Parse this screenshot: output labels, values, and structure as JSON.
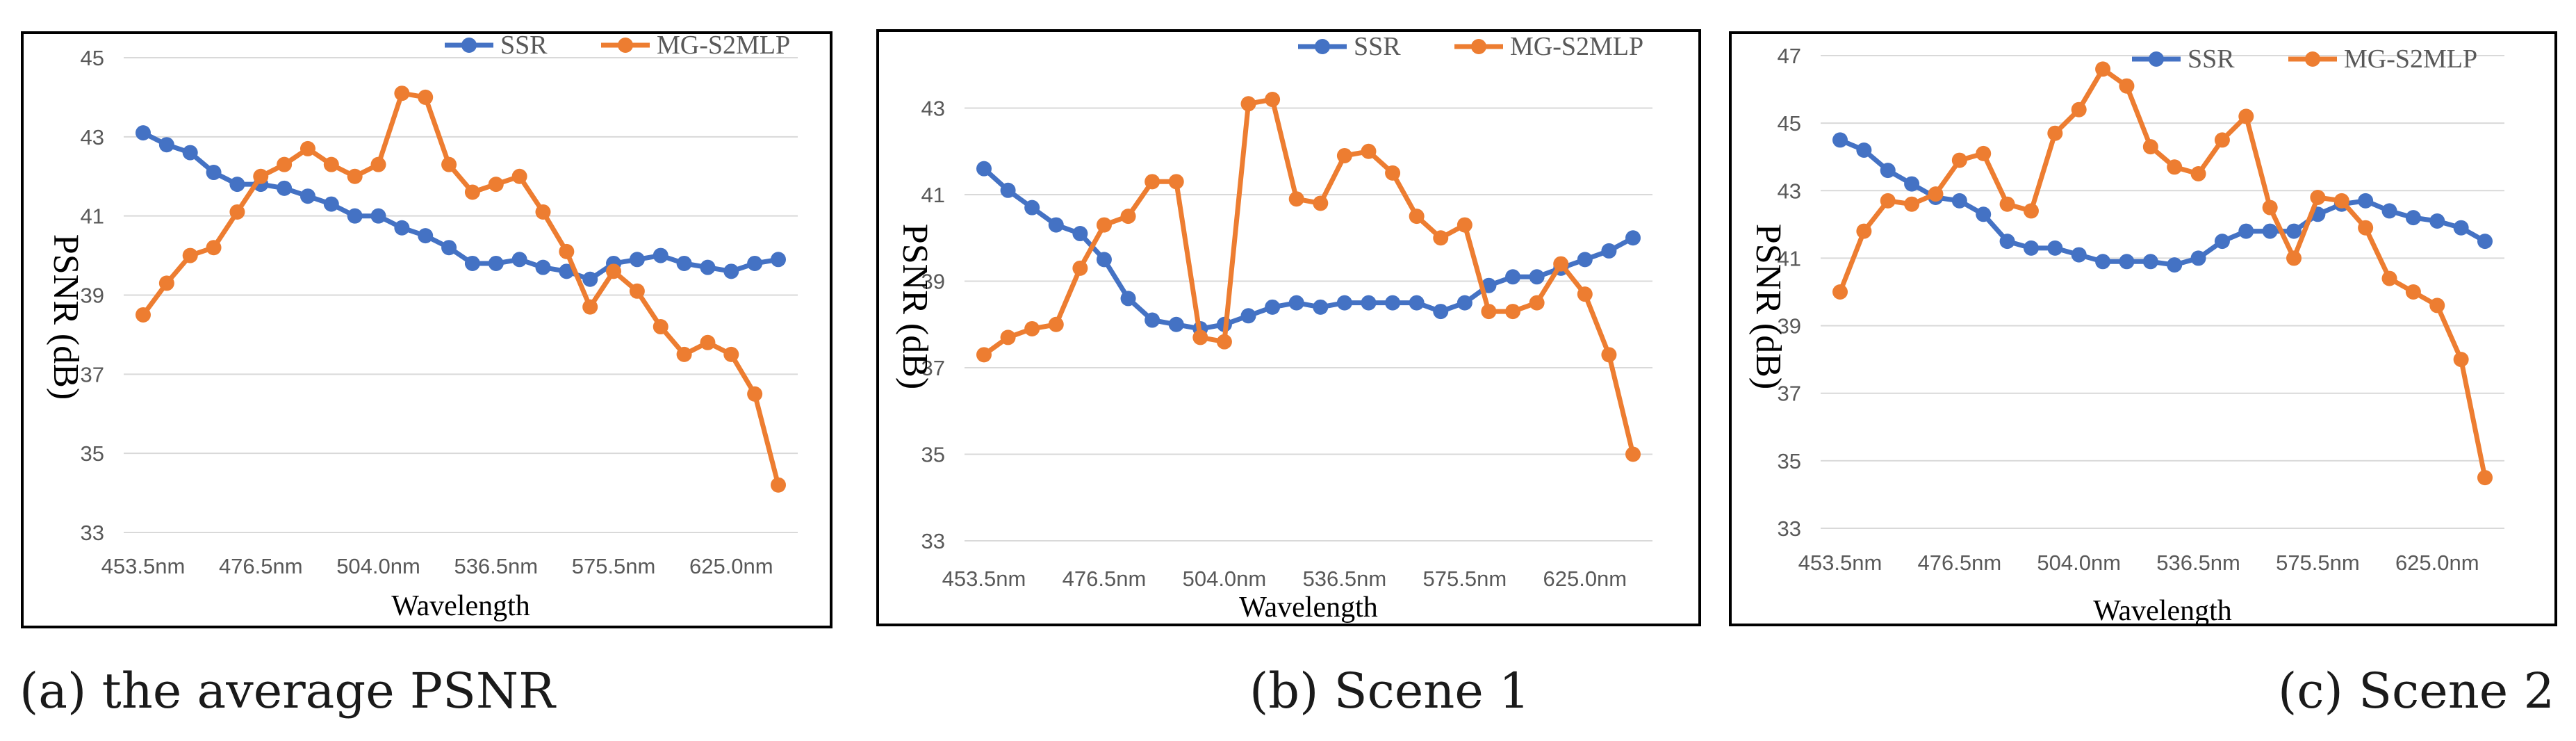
{
  "chart_data": [
    {
      "type": "line",
      "caption": "(a) the average PSNR",
      "xlabel": "Wavelength",
      "ylabel": "PSNR (dB)",
      "ylim": [
        33,
        45
      ],
      "yticks": [
        "33",
        "35",
        "37",
        "39",
        "41",
        "43",
        "45"
      ],
      "xtick_labels": [
        "453.5nm",
        "476.5nm",
        "504.0nm",
        "536.5nm",
        "575.5nm",
        "625.0nm"
      ],
      "xtick_positions": [
        0,
        5,
        10,
        15,
        20,
        25
      ],
      "n_points": 28,
      "legend": [
        "SSR",
        "MG-S2MLP"
      ],
      "series": [
        {
          "name": "SSR",
          "color": "#4472C4",
          "values": [
            43.1,
            42.8,
            42.6,
            42.1,
            41.8,
            41.8,
            41.7,
            41.5,
            41.3,
            41.0,
            41.0,
            40.7,
            40.5,
            40.2,
            39.8,
            39.8,
            39.9,
            39.7,
            39.6,
            39.4,
            39.8,
            39.9,
            40.0,
            39.8,
            39.7,
            39.6,
            39.8,
            39.9
          ]
        },
        {
          "name": "MG-S2MLP",
          "color": "#ED7D31",
          "values": [
            38.5,
            39.3,
            40.0,
            40.2,
            41.1,
            42.0,
            42.3,
            42.7,
            42.3,
            42.0,
            42.3,
            44.1,
            44.0,
            42.3,
            41.6,
            41.8,
            42.0,
            41.1,
            40.1,
            38.7,
            39.6,
            39.1,
            38.2,
            37.5,
            37.8,
            37.5,
            36.5,
            34.2
          ]
        }
      ]
    },
    {
      "type": "line",
      "caption": "(b) Scene 1",
      "xlabel": "Wavelength",
      "ylabel": "PSNR (dB)",
      "ylim": [
        33,
        45
      ],
      "yticks": [
        "33",
        "35",
        "37",
        "39",
        "41",
        "43"
      ],
      "xtick_labels": [
        "453.5nm",
        "476.5nm",
        "504.0nm",
        "536.5nm",
        "575.5nm",
        "625.0nm"
      ],
      "xtick_positions": [
        0,
        5,
        10,
        15,
        20,
        25
      ],
      "n_points": 28,
      "legend": [
        "SSR",
        "MG-S2MLP"
      ],
      "series": [
        {
          "name": "SSR",
          "color": "#4472C4",
          "values": [
            41.6,
            41.1,
            40.7,
            40.3,
            40.1,
            39.5,
            38.6,
            38.1,
            38.0,
            37.9,
            38.0,
            38.2,
            38.4,
            38.5,
            38.4,
            38.5,
            38.5,
            38.5,
            38.5,
            38.3,
            38.5,
            38.9,
            39.1,
            39.1,
            39.3,
            39.5,
            39.7,
            40.0
          ]
        },
        {
          "name": "MG-S2MLP",
          "color": "#ED7D31",
          "values": [
            37.3,
            37.7,
            37.9,
            38.0,
            39.3,
            40.3,
            40.5,
            41.3,
            41.3,
            37.7,
            37.6,
            43.1,
            43.2,
            40.9,
            40.8,
            41.9,
            42.0,
            41.5,
            40.5,
            40.0,
            40.3,
            38.3,
            38.3,
            38.5,
            39.4,
            38.7,
            37.3,
            35.0
          ]
        }
      ]
    },
    {
      "type": "line",
      "caption": "(c) Scene 2",
      "xlabel": "Wavelength",
      "ylabel": "PSNR (dB)",
      "ylim": [
        33,
        47
      ],
      "yticks": [
        "33",
        "35",
        "37",
        "39",
        "41",
        "43",
        "45",
        "47"
      ],
      "xtick_labels": [
        "453.5nm",
        "476.5nm",
        "504.0nm",
        "536.5nm",
        "575.5nm",
        "625.0nm"
      ],
      "xtick_positions": [
        0,
        5,
        10,
        15,
        20,
        25
      ],
      "n_points": 28,
      "legend": [
        "SSR",
        "MG-S2MLP"
      ],
      "series": [
        {
          "name": "SSR",
          "color": "#4472C4",
          "values": [
            44.5,
            44.2,
            43.6,
            43.2,
            42.8,
            42.7,
            42.3,
            41.5,
            41.3,
            41.3,
            41.1,
            40.9,
            40.9,
            40.9,
            40.8,
            41.0,
            41.5,
            41.8,
            41.8,
            41.8,
            42.3,
            42.6,
            42.7,
            42.4,
            42.2,
            42.1,
            41.9,
            41.5
          ]
        },
        {
          "name": "MG-S2MLP",
          "color": "#ED7D31",
          "values": [
            40.0,
            41.8,
            42.7,
            42.6,
            42.9,
            43.9,
            44.1,
            42.6,
            42.4,
            44.7,
            45.4,
            46.6,
            46.1,
            44.3,
            43.7,
            43.5,
            44.5,
            45.2,
            42.5,
            41.0,
            42.8,
            42.7,
            41.9,
            40.4,
            40.0,
            39.6,
            38.0,
            34.5
          ]
        }
      ]
    }
  ]
}
